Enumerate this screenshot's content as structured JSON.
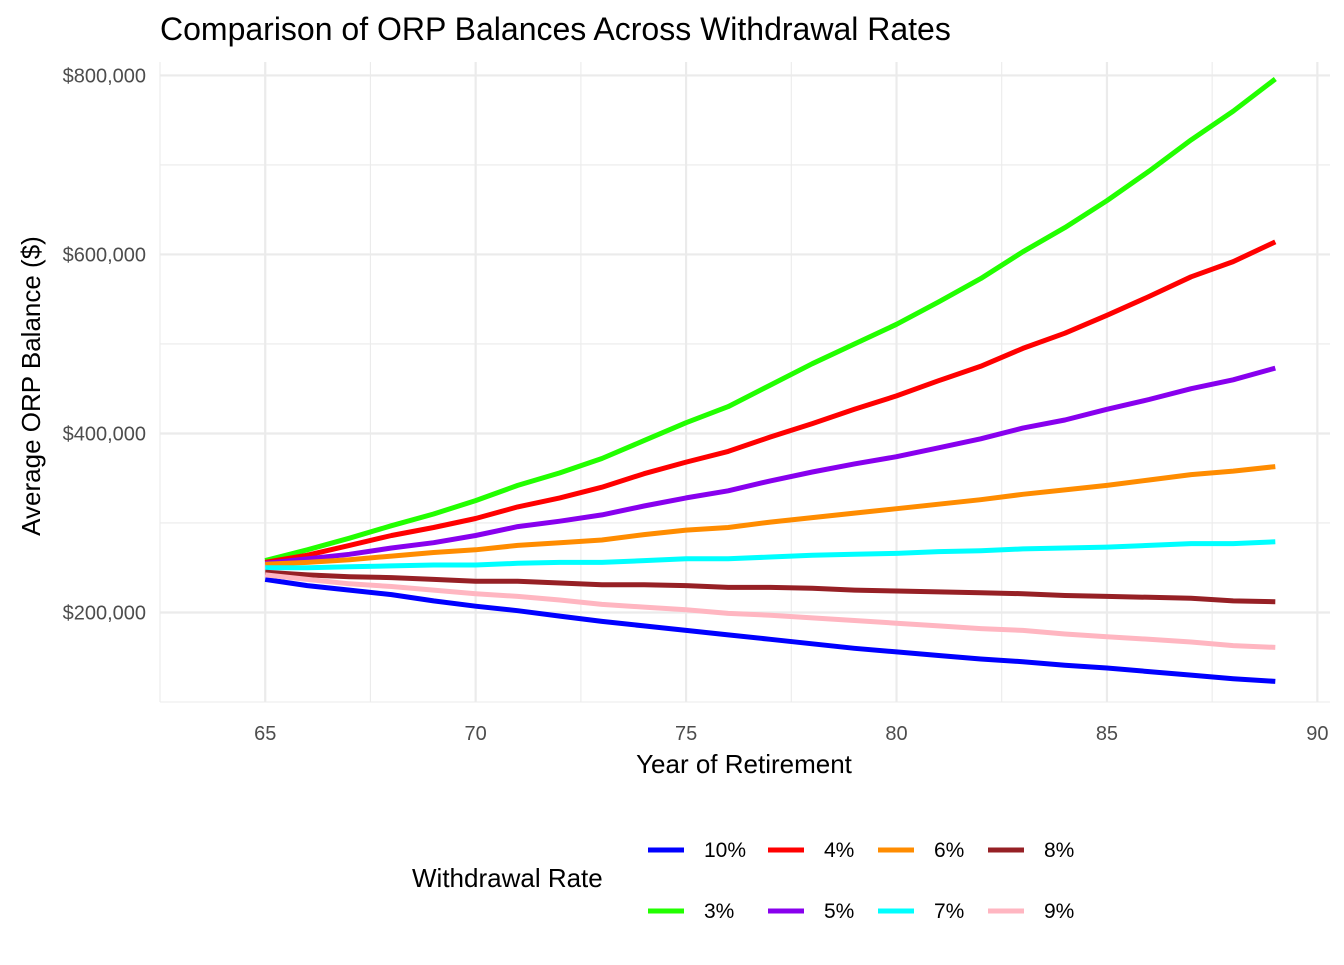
{
  "chart_data": {
    "type": "line",
    "title": "Comparison of ORP Balances Across Withdrawal Rates",
    "xlabel": "Year of Retirement",
    "ylabel": "Average ORP Balance ($)",
    "xlim": [
      62.5,
      90.3
    ],
    "ylim": [
      100000,
      815000
    ],
    "x_ticks": [
      65,
      70,
      75,
      80,
      85,
      90
    ],
    "x_tick_labels": [
      "65",
      "70",
      "75",
      "80",
      "85",
      "90"
    ],
    "y_ticks": [
      200000,
      400000,
      600000,
      800000
    ],
    "y_tick_labels": [
      "$200,000",
      "$400,000",
      "$600,000",
      "$800,000"
    ],
    "grid": true,
    "legend": {
      "title": "Withdrawal Rate",
      "position": "bottom"
    },
    "x": [
      65,
      66,
      67,
      68,
      69,
      70,
      71,
      72,
      73,
      74,
      75,
      76,
      77,
      78,
      79,
      80,
      81,
      82,
      83,
      84,
      85,
      86,
      87,
      88,
      89
    ],
    "series": [
      {
        "name": "10%",
        "color": "#0000ff",
        "values": [
          237000,
          230000,
          225000,
          220000,
          213000,
          207000,
          202000,
          196000,
          190000,
          185000,
          180000,
          175000,
          170000,
          165000,
          160000,
          156000,
          152000,
          148000,
          145000,
          141000,
          138000,
          134000,
          130000,
          126000,
          123000
        ]
      },
      {
        "name": "3%",
        "color": "#22ff00",
        "values": [
          258000,
          270000,
          283000,
          297000,
          310000,
          325000,
          342000,
          356000,
          372000,
          392000,
          412000,
          430000,
          454000,
          478000,
          500000,
          522000,
          547000,
          573000,
          603000,
          630000,
          660000,
          693000,
          728000,
          760000,
          796000
        ]
      },
      {
        "name": "4%",
        "color": "#ff0000",
        "values": [
          256000,
          264000,
          275000,
          286000,
          295000,
          305000,
          318000,
          328000,
          340000,
          355000,
          368000,
          380000,
          396000,
          411000,
          427000,
          442000,
          459000,
          475000,
          495000,
          512000,
          532000,
          553000,
          575000,
          592000,
          614000
        ]
      },
      {
        "name": "5%",
        "color": "#8800ee",
        "values": [
          255000,
          260000,
          265000,
          272000,
          278000,
          286000,
          296000,
          302000,
          309000,
          319000,
          328000,
          336000,
          347000,
          357000,
          366000,
          374000,
          384000,
          394000,
          406000,
          415000,
          427000,
          438000,
          450000,
          460000,
          473000
        ]
      },
      {
        "name": "6%",
        "color": "#ff8c00",
        "values": [
          254000,
          256000,
          259000,
          263000,
          267000,
          270000,
          275000,
          278000,
          281000,
          287000,
          292000,
          295000,
          301000,
          306000,
          311000,
          316000,
          321000,
          326000,
          332000,
          337000,
          342000,
          348000,
          354000,
          358000,
          363000
        ]
      },
      {
        "name": "7%",
        "color": "#00ffff",
        "values": [
          250000,
          250000,
          251000,
          252000,
          253000,
          253000,
          255000,
          256000,
          256000,
          258000,
          260000,
          260000,
          262000,
          264000,
          265000,
          266000,
          268000,
          269000,
          271000,
          272000,
          273000,
          275000,
          277000,
          277000,
          279000
        ]
      },
      {
        "name": "8%",
        "color": "#962025",
        "values": [
          245000,
          242000,
          240000,
          239000,
          237000,
          235000,
          235000,
          233000,
          231000,
          231000,
          230000,
          228000,
          228000,
          227000,
          225000,
          224000,
          223000,
          222000,
          221000,
          219000,
          218000,
          217000,
          216000,
          213000,
          212000
        ]
      },
      {
        "name": "9%",
        "color": "#ffb6c1",
        "values": [
          242000,
          237000,
          232000,
          229000,
          225000,
          221000,
          218000,
          214000,
          209000,
          206000,
          203000,
          199000,
          197000,
          194000,
          191000,
          188000,
          185000,
          182000,
          180000,
          176000,
          173000,
          170000,
          167000,
          163000,
          161000
        ]
      }
    ]
  }
}
